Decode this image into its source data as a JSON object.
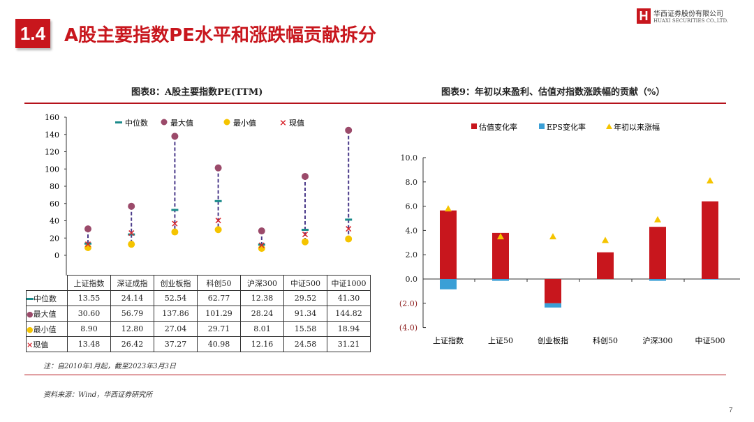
{
  "header": {
    "section_number": "1.4",
    "title": "A股主要指数PE水平和涨跌幅贡献拆分",
    "logo_cn": "华西证券股份有限公司",
    "logo_en": "HUAXI SECURITIES CO.,LTD.",
    "logo_mark": "H"
  },
  "chart_data": [
    {
      "type": "scatter",
      "title": "图表8：A股主要指数PE(TTM)",
      "ylim": [
        0,
        160
      ],
      "yticks": [
        0,
        20,
        40,
        60,
        80,
        100,
        120,
        140,
        160
      ],
      "categories": [
        "上证指数",
        "深证成指",
        "创业板指",
        "科创50",
        "沪深300",
        "中证500",
        "中证1000"
      ],
      "series": [
        {
          "name": "中位数",
          "color": "#1a8a8a",
          "values": [
            13.55,
            24.14,
            52.54,
            62.77,
            12.38,
            29.52,
            41.3
          ]
        },
        {
          "name": "最大值",
          "color": "#9b4a6a",
          "values": [
            30.6,
            56.79,
            137.86,
            101.29,
            28.24,
            91.34,
            144.82
          ]
        },
        {
          "name": "最小值",
          "color": "#f5c400",
          "values": [
            8.9,
            12.8,
            27.04,
            29.71,
            8.01,
            15.58,
            18.94
          ]
        },
        {
          "name": "现值",
          "color": "#d8232a",
          "values": [
            13.48,
            26.42,
            37.27,
            40.98,
            12.16,
            24.58,
            31.21
          ]
        }
      ],
      "table_values": [
        [
          "13.55",
          "24.14",
          "52.54",
          "62.77",
          "12.38",
          "29.52",
          "41.30"
        ],
        [
          "30.60",
          "56.79",
          "137.86",
          "101.29",
          "28.24",
          "91.34",
          "144.82"
        ],
        [
          "8.90",
          "12.80",
          "27.04",
          "29.71",
          "8.01",
          "15.58",
          "18.94"
        ],
        [
          "13.48",
          "26.42",
          "37.27",
          "40.98",
          "12.16",
          "24.58",
          "31.21"
        ]
      ],
      "note": "注：自2010年1月起，截至2023年3月3日"
    },
    {
      "type": "bar",
      "title": "图表9：年初以来盈利、估值对指数涨跌幅的贡献（%）",
      "ylim": [
        -4,
        10
      ],
      "yticks": [
        "(4.0)",
        "(2.0)",
        "0.0",
        "2.0",
        "4.0",
        "6.0",
        "8.0",
        "10.0"
      ],
      "ytick_values": [
        -4,
        -2,
        0,
        2,
        4,
        6,
        8,
        10
      ],
      "categories": [
        "上证指数",
        "上证50",
        "创业板指",
        "科创50",
        "沪深300",
        "中证500"
      ],
      "series": [
        {
          "name": "估值变化率",
          "color": "#c8161d",
          "values": [
            5.65,
            3.8,
            -2.0,
            2.2,
            4.3,
            6.4
          ]
        },
        {
          "name": "EPS变化率",
          "color": "#3a9fd6",
          "values": [
            -0.85,
            -0.15,
            -0.35,
            0,
            -0.15,
            -0.05
          ]
        },
        {
          "name": "年初以来涨幅",
          "color": "#f5c400",
          "values": [
            5.8,
            3.5,
            3.5,
            3.2,
            4.9,
            8.1
          ]
        }
      ]
    }
  ],
  "footer": {
    "source": "资料来源：Wind，华西证券研究所",
    "page": "7"
  }
}
